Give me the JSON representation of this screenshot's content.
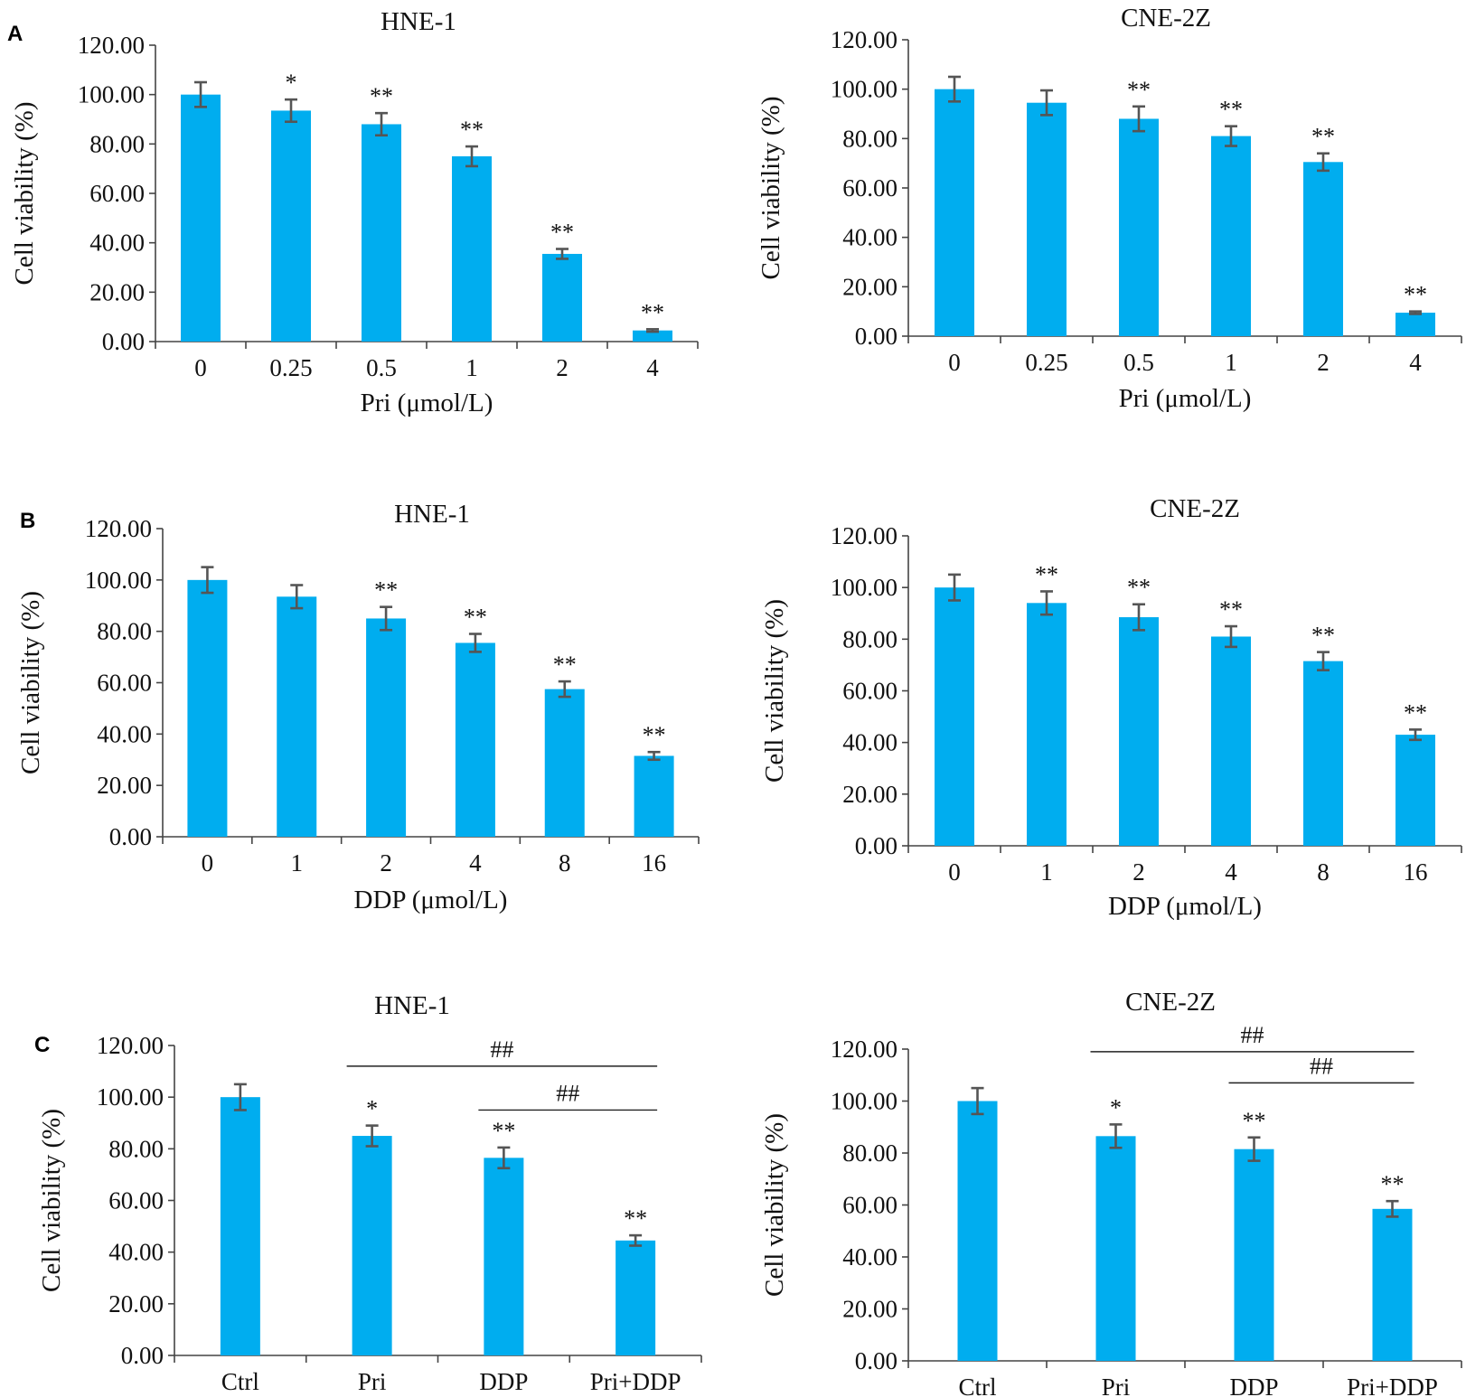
{
  "panel_labels": [
    "A",
    "B",
    "C"
  ],
  "chart_data": [
    {
      "panel": "A",
      "type": "bar",
      "title": "HNE-1",
      "xlabel": "Pri (μmol/L)",
      "ylabel": "Cell viability (%)",
      "ylim": [
        0,
        120
      ],
      "yticks": [
        "0.00",
        "20.00",
        "40.00",
        "60.00",
        "80.00",
        "100.00",
        "120.00"
      ],
      "categories": [
        "0",
        "0.25",
        "0.5",
        "1",
        "2",
        "4"
      ],
      "values": [
        100,
        93.5,
        88,
        75,
        35.5,
        4.5
      ],
      "errors": [
        5,
        4.5,
        4.5,
        4,
        2,
        0.5
      ],
      "annotations": [
        "",
        "*",
        "**",
        "**",
        "**",
        "**"
      ],
      "brackets": [],
      "bar_color": "#00adef",
      "error_color": "#555555"
    },
    {
      "panel": "A",
      "type": "bar",
      "title": "CNE-2Z",
      "xlabel": "Pri (μmol/L)",
      "ylabel": "Cell viability (%)",
      "ylim": [
        0,
        120
      ],
      "yticks": [
        "0.00",
        "20.00",
        "40.00",
        "60.00",
        "80.00",
        "100.00",
        "120.00"
      ],
      "categories": [
        "0",
        "0.25",
        "0.5",
        "1",
        "2",
        "4"
      ],
      "values": [
        100,
        94.5,
        88,
        81,
        70.5,
        9.5
      ],
      "errors": [
        5,
        5,
        5,
        4,
        3.5,
        0.5
      ],
      "annotations": [
        "",
        "",
        "**",
        "**",
        "**",
        "**"
      ],
      "brackets": [],
      "bar_color": "#00adef",
      "error_color": "#555555"
    },
    {
      "panel": "B",
      "type": "bar",
      "title": "HNE-1",
      "xlabel": "DDP (μmol/L)",
      "ylabel": "Cell viability (%)",
      "ylim": [
        0,
        120
      ],
      "yticks": [
        "0.00",
        "20.00",
        "40.00",
        "60.00",
        "80.00",
        "100.00",
        "120.00"
      ],
      "categories": [
        "0",
        "1",
        "2",
        "4",
        "8",
        "16"
      ],
      "values": [
        100,
        93.5,
        85,
        75.5,
        57.5,
        31.5
      ],
      "errors": [
        5,
        4.5,
        4.5,
        3.5,
        3,
        1.5
      ],
      "annotations": [
        "",
        "",
        "**",
        "**",
        "**",
        "**"
      ],
      "brackets": [],
      "bar_color": "#00adef",
      "error_color": "#555555"
    },
    {
      "panel": "B",
      "type": "bar",
      "title": "CNE-2Z",
      "xlabel": "DDP (μmol/L)",
      "ylabel": "Cell viability (%)",
      "ylim": [
        0,
        120
      ],
      "yticks": [
        "0.00",
        "20.00",
        "40.00",
        "60.00",
        "80.00",
        "100.00",
        "120.00"
      ],
      "categories": [
        "0",
        "1",
        "2",
        "4",
        "8",
        "16"
      ],
      "values": [
        100,
        94,
        88.5,
        81,
        71.5,
        43
      ],
      "errors": [
        5,
        4.5,
        5,
        4,
        3.5,
        2
      ],
      "annotations": [
        "",
        "**",
        "**",
        "**",
        "**",
        "**"
      ],
      "brackets": [],
      "bar_color": "#00adef",
      "error_color": "#555555"
    },
    {
      "panel": "C",
      "type": "bar",
      "title": "HNE-1",
      "xlabel": "",
      "ylabel": "Cell viability (%)",
      "ylim": [
        0,
        120
      ],
      "yticks": [
        "0.00",
        "20.00",
        "40.00",
        "60.00",
        "80.00",
        "100.00",
        "120.00"
      ],
      "categories": [
        "Ctrl",
        "Pri",
        "DDP",
        "Pri+DDP"
      ],
      "values": [
        100,
        85,
        76.5,
        44.5
      ],
      "errors": [
        5,
        4,
        4,
        2
      ],
      "annotations": [
        "",
        "*",
        "**",
        "**"
      ],
      "brackets": [
        {
          "from": 1,
          "to": 3,
          "value": 112,
          "label": "##"
        },
        {
          "from": 2,
          "to": 3,
          "value": 95,
          "label": "##"
        }
      ],
      "bar_color": "#00adef",
      "error_color": "#555555"
    },
    {
      "panel": "C",
      "type": "bar",
      "title": "CNE-2Z",
      "xlabel": "",
      "ylabel": "Cell viability (%)",
      "ylim": [
        0,
        120
      ],
      "yticks": [
        "0.00",
        "20.00",
        "40.00",
        "60.00",
        "80.00",
        "100.00",
        "120.00"
      ],
      "categories": [
        "Ctrl",
        "Pri",
        "DDP",
        "Pri+DDP"
      ],
      "values": [
        100,
        86.5,
        81.5,
        58.5
      ],
      "errors": [
        5,
        4.5,
        4.5,
        3
      ],
      "annotations": [
        "",
        "*",
        "**",
        "**"
      ],
      "brackets": [
        {
          "from": 1,
          "to": 3,
          "value": 119,
          "label": "##"
        },
        {
          "from": 2,
          "to": 3,
          "value": 107,
          "label": "##"
        }
      ],
      "bar_color": "#00adef",
      "error_color": "#555555"
    }
  ]
}
